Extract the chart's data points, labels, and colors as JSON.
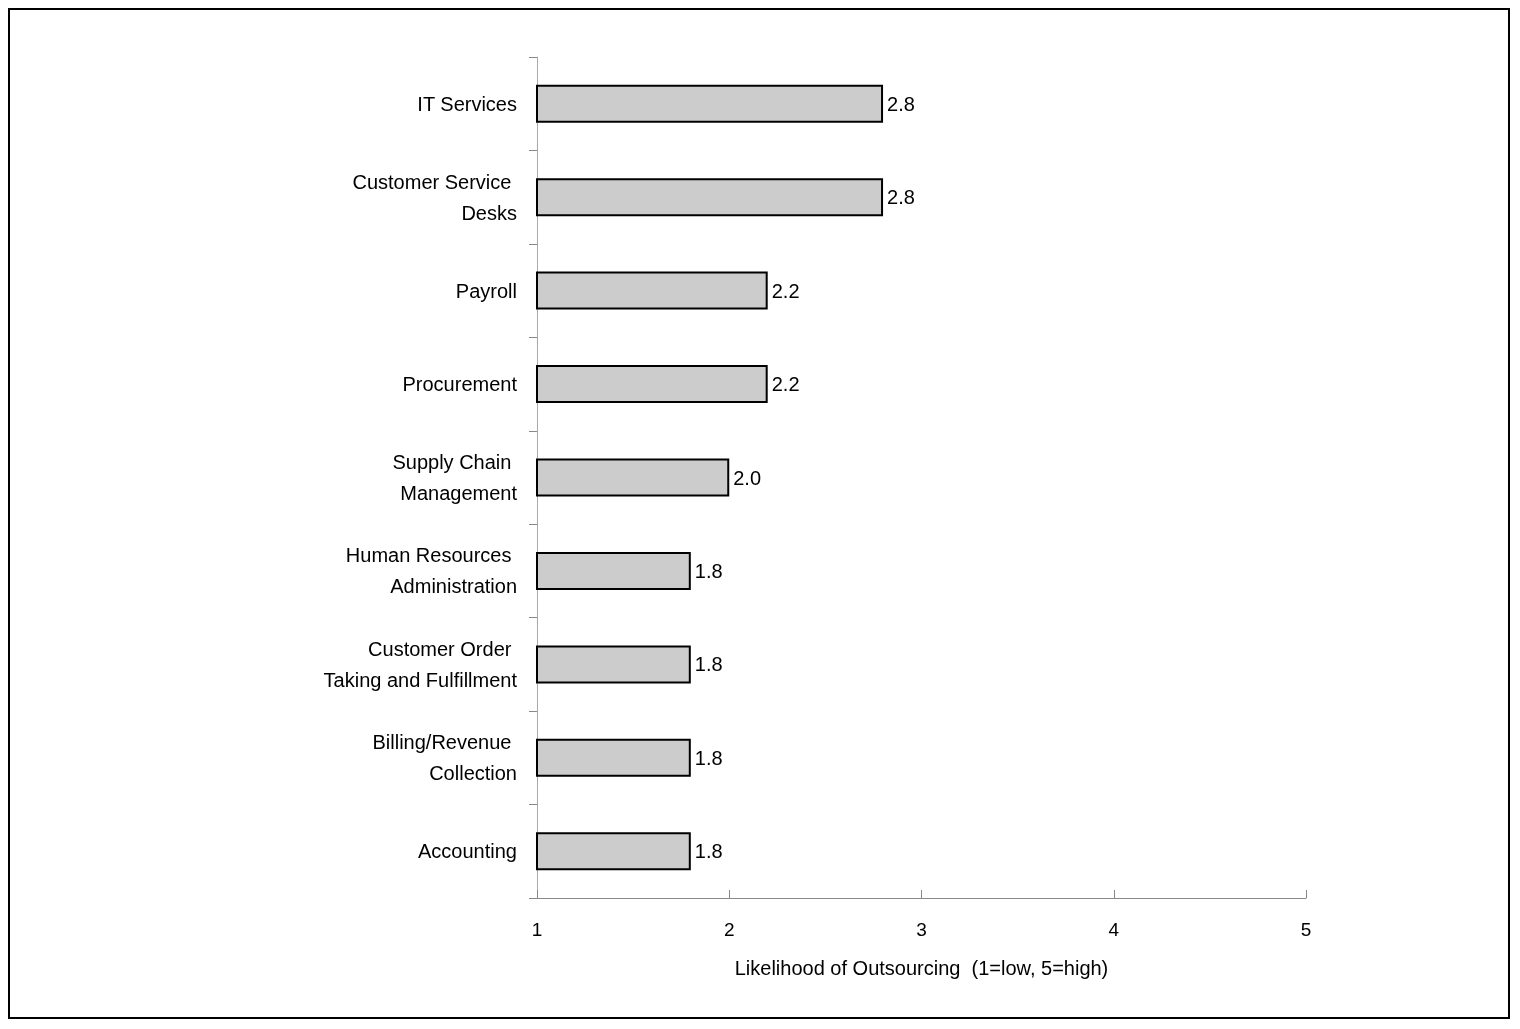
{
  "chart_data": {
    "type": "bar",
    "orientation": "horizontal",
    "xlabel": "Likelihood of Outsourcing  (1=low, 5=high)",
    "categories": [
      "IT Services",
      "Customer Service Desks",
      "Payroll",
      "Procurement",
      "Supply Chain Management",
      "Human Resources Administration",
      "Customer Order Taking and Fulfillment",
      "Billing/Revenue Collection",
      "Accounting"
    ],
    "values": [
      2.8,
      2.8,
      2.2,
      2.2,
      2.0,
      1.8,
      1.8,
      1.8,
      1.8
    ],
    "value_labels": [
      "2.8",
      "2.8",
      "2.2",
      "2.2",
      "2.0",
      "1.8",
      "1.8",
      "1.8",
      "1.8"
    ],
    "color": "#cccccc",
    "xlim": [
      1,
      5
    ],
    "xticks": [
      1,
      2,
      3,
      4,
      5
    ],
    "grid": false
  }
}
